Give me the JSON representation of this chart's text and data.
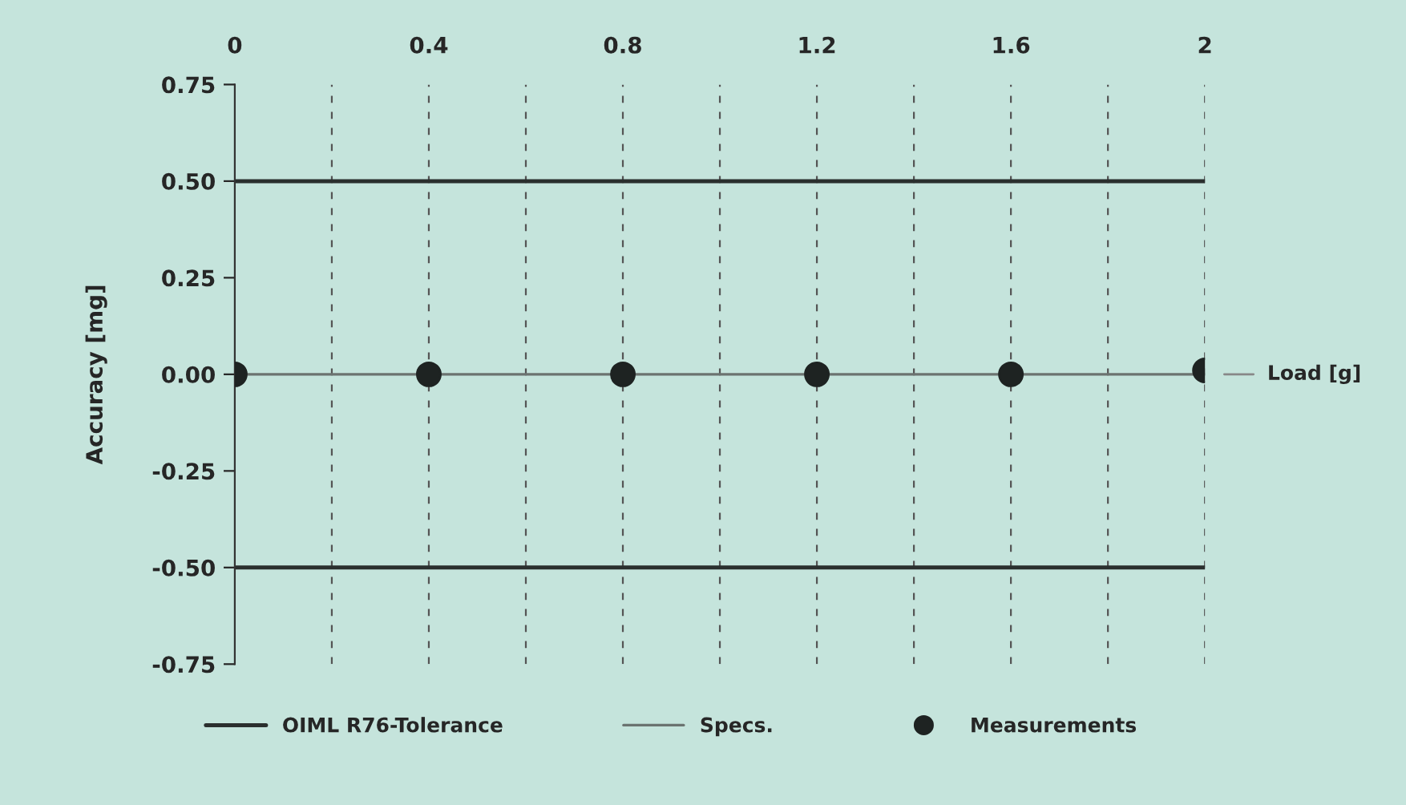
{
  "chart_data": {
    "type": "line",
    "ylabel": "Accuracy [mg]",
    "xlabel": "Load [g]",
    "xlim": [
      0,
      2
    ],
    "xticks": [
      0,
      {
        "value": 0.2,
        "label": null
      },
      0.4,
      {
        "value": 0.6,
        "label": null
      },
      0.8,
      {
        "value": 1.0,
        "label": null
      },
      1.2,
      {
        "value": 1.4,
        "label": null
      },
      1.6,
      {
        "value": 1.8,
        "label": null
      },
      2
    ],
    "ylim": [
      -0.75,
      0.75
    ],
    "yticks": [
      {
        "value": 0.75,
        "label": "0.75"
      },
      {
        "value": 0.5,
        "label": "0.50"
      },
      {
        "value": 0.25,
        "label": "0.25"
      },
      {
        "value": 0,
        "label": "0.00"
      },
      {
        "value": -0.25,
        "label": "-0.25"
      },
      {
        "value": -0.5,
        "label": "-0.50"
      },
      {
        "value": -0.75,
        "label": "-0.75"
      }
    ],
    "grid": "x",
    "legend": "bottom",
    "series": [
      {
        "name": "OIML R76-Tolerance",
        "color": "#2a2f2e",
        "x": [
          0,
          2
        ],
        "values": [
          0.5,
          0.5
        ]
      },
      {
        "color": "#2a2f2e",
        "x": [
          0,
          2
        ],
        "values": [
          -0.5,
          -0.5
        ]
      },
      {
        "name": "Specs.",
        "color": "#6b7370",
        "x": [
          0,
          2
        ],
        "values": [
          0,
          0
        ]
      },
      {
        "name": "Measurements",
        "type": "scatter",
        "color": "#1e2322",
        "marker": "circle",
        "x": [
          0,
          0.4,
          0.8,
          1.2,
          1.6,
          2
        ],
        "values": [
          0,
          0,
          0,
          0,
          0,
          0.01
        ]
      }
    ]
  }
}
